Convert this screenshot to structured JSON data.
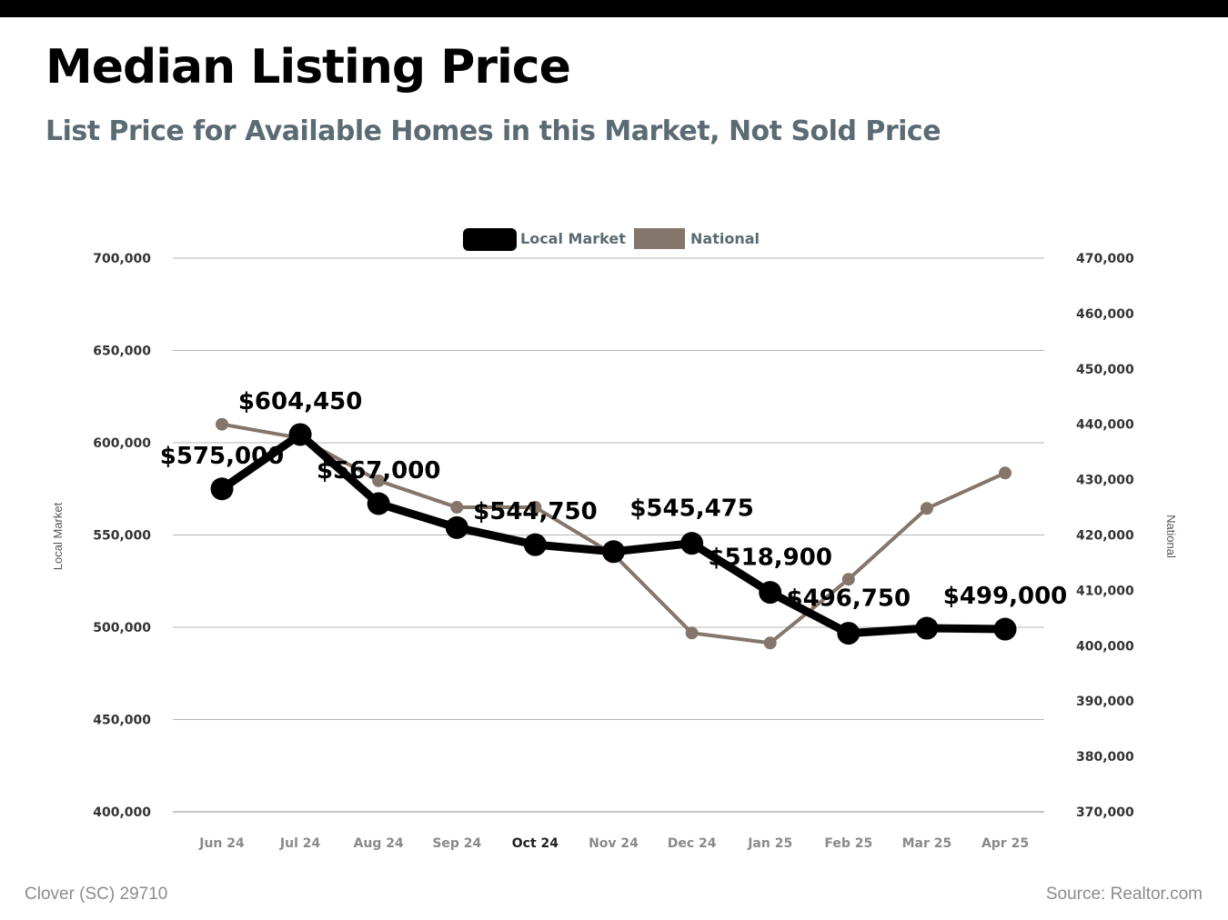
{
  "header": {
    "title": "Median Listing Price",
    "subtitle": "List Price for Available Homes in this Market, Not Sold Price"
  },
  "footer": {
    "left": "Clover (SC) 29710",
    "right": "Source: Realtor.com"
  },
  "colors": {
    "local": "#000000",
    "national": "#84766a",
    "grid": "#b5b5b5",
    "subtitle": "#5b6b73"
  },
  "chart_data": {
    "type": "line",
    "categories": [
      "Jun 24",
      "Jul 24",
      "Aug 24",
      "Sep 24",
      "Oct 24",
      "Nov 24",
      "Dec 24",
      "Jan 25",
      "Feb 25",
      "Mar 25",
      "Apr 25"
    ],
    "highlighted_category": "Oct 24",
    "legend_position": "top-center",
    "grid": true,
    "y_left": {
      "label": "Local Market",
      "ylim": [
        400000,
        700000
      ],
      "ticks": [
        "400,000",
        "450,000",
        "500,000",
        "550,000",
        "600,000",
        "650,000",
        "700,000"
      ]
    },
    "y_right": {
      "label": "National",
      "ylim": [
        370000,
        470000
      ],
      "ticks": [
        "370,000",
        "380,000",
        "390,000",
        "400,000",
        "410,000",
        "420,000",
        "430,000",
        "440,000",
        "450,000",
        "460,000",
        "470,000"
      ]
    },
    "series": [
      {
        "name": "Local Market",
        "axis": "left",
        "values": [
          575000,
          604450,
          567000,
          554000,
          544750,
          541000,
          545475,
          518900,
          496750,
          499500,
          499000
        ],
        "labels": [
          "$575,000",
          "$604,450",
          "$567,000",
          "",
          "$544,750",
          "",
          "$545,475",
          "$518,900",
          "$496,750",
          "",
          "$499,000"
        ]
      },
      {
        "name": "National",
        "axis": "right",
        "values": [
          440000,
          437500,
          429800,
          425000,
          425000,
          416500,
          402300,
          400500,
          412000,
          424800,
          431200
        ]
      }
    ]
  }
}
